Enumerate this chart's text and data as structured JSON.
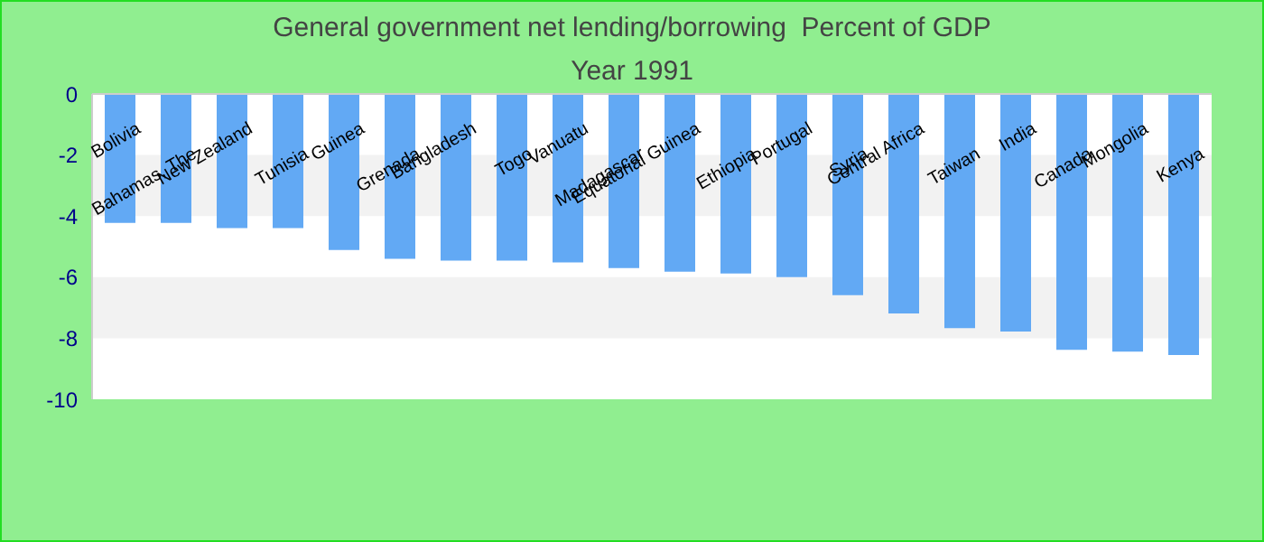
{
  "chart_data": {
    "type": "bar",
    "title": "General government net lending/borrowing  Percent of GDP",
    "subtitle": "Year 1991",
    "categories": [
      "Bolivia",
      "Bahamas, The",
      "New Zealand",
      "Tunisia",
      "Guinea",
      "Grenada",
      "Bangladesh",
      "Togo",
      "Vanuatu",
      "Madagascar",
      "Equatorial Guinea",
      "Ethiopia",
      "Portugal",
      "Syria",
      "Central Africa",
      "Taiwan",
      "India",
      "Canada",
      "Mongolia",
      "Kenya"
    ],
    "values": [
      -4.22,
      -4.22,
      -4.39,
      -4.39,
      -5.11,
      -5.4,
      -5.46,
      -5.46,
      -5.52,
      -5.7,
      -5.82,
      -5.88,
      -6.0,
      -6.59,
      -7.19,
      -7.67,
      -7.78,
      -8.38,
      -8.44,
      -8.55
    ],
    "color": "#62a9f4",
    "ylim": [
      -10,
      0
    ],
    "yticks": [
      -10,
      -8,
      -6,
      -4,
      -2,
      0
    ],
    "legend": false,
    "bands": [
      {
        "axis": "y",
        "from": -4,
        "to": -2,
        "color": "#f2f2f2"
      },
      {
        "axis": "y",
        "from": -8,
        "to": -6,
        "color": "#f2f2f2"
      }
    ]
  }
}
